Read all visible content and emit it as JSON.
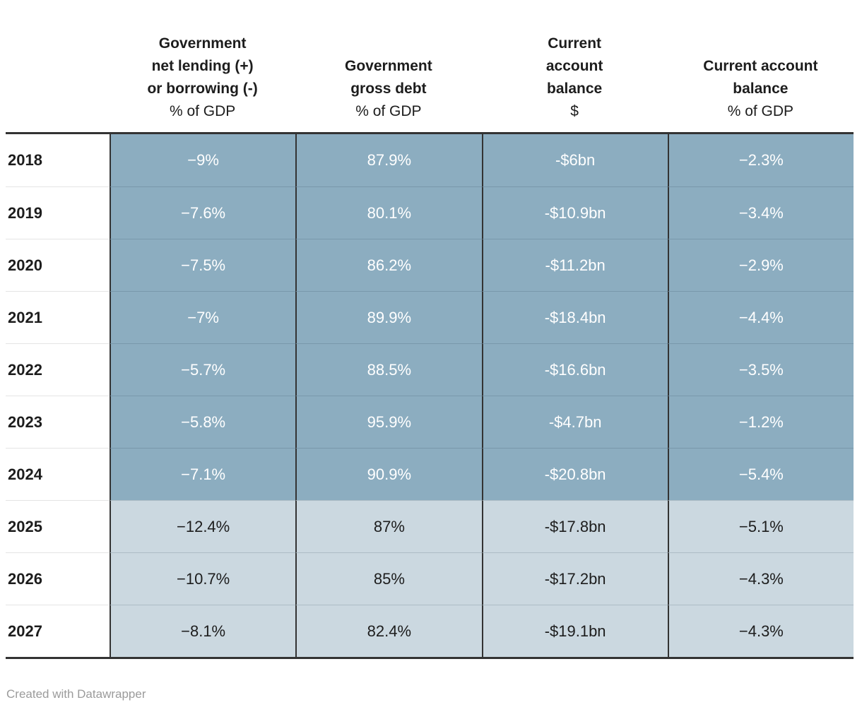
{
  "chart_data": {
    "type": "table",
    "columns": [
      "Year",
      "Government net lending (+) or borrowing (-) % of GDP",
      "Government gross debt % of GDP",
      "Current account balance $",
      "Current account balance % of GDP"
    ],
    "rows": [
      [
        "2018",
        "−9%",
        "87.9%",
        "-$6bn",
        "−2.3%"
      ],
      [
        "2019",
        "−7.6%",
        "80.1%",
        "-$10.9bn",
        "−3.4%"
      ],
      [
        "2020",
        "−7.5%",
        "86.2%",
        "-$11.2bn",
        "−2.9%"
      ],
      [
        "2021",
        "−7%",
        "89.9%",
        "-$18.4bn",
        "−4.4%"
      ],
      [
        "2022",
        "−5.7%",
        "88.5%",
        "-$16.6bn",
        "−3.5%"
      ],
      [
        "2023",
        "−5.8%",
        "95.9%",
        "-$4.7bn",
        "−1.2%"
      ],
      [
        "2024",
        "−7.1%",
        "90.9%",
        "-$20.8bn",
        "−5.4%"
      ],
      [
        "2025",
        "−12.4%",
        "87%",
        "-$17.8bn",
        "−5.1%"
      ],
      [
        "2026",
        "−10.7%",
        "85%",
        "-$17.2bn",
        "−4.3%"
      ],
      [
        "2027",
        "−8.1%",
        "82.4%",
        "-$19.1bn",
        "−4.3%"
      ]
    ],
    "layout_hints": {
      "row_group_shading": "rows 2018-2024 dark blue with white text, rows 2025-2027 light blue with dark text"
    }
  },
  "table": {
    "header_columns": [
      {
        "lines": [
          "Government",
          "net lending (+)",
          "or borrowing (-)"
        ],
        "unit": "% of GDP"
      },
      {
        "lines": [
          "Government",
          "gross debt"
        ],
        "unit": "% of GDP"
      },
      {
        "lines": [
          "Current",
          "account",
          "balance"
        ],
        "unit": "$"
      },
      {
        "lines": [
          "Current account",
          "balance"
        ],
        "unit": "% of GDP"
      }
    ],
    "row_styles": [
      "dark",
      "dark",
      "dark",
      "dark",
      "dark",
      "dark",
      "dark",
      "light",
      "light",
      "light"
    ]
  },
  "footer": {
    "credit": "Created with Datawrapper"
  },
  "colors": {
    "dark_cell_bg": "#8cadc0",
    "dark_cell_text": "#ffffff",
    "light_cell_bg": "#cbd8e0",
    "light_cell_text": "#1d1d1d",
    "border_dark": "#333333",
    "year_text": "#1d1d1d",
    "credit_text": "#9b9b9b"
  }
}
